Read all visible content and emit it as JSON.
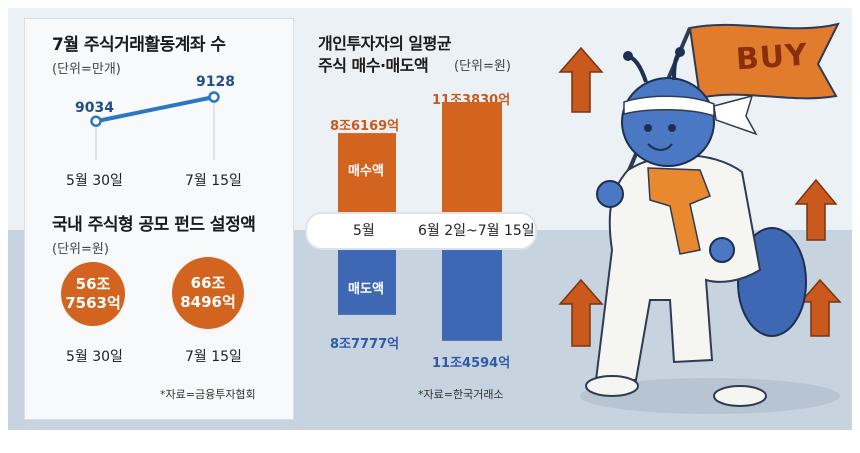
{
  "chart_data": [
    {
      "type": "line",
      "title": "7월 주식거래활동계좌 수",
      "unit": "(단위=만개)",
      "categories": [
        "5월 30일",
        "7월 15일"
      ],
      "values": [
        9034,
        9128
      ]
    },
    {
      "type": "bubble",
      "title": "국내 주식형 공모 펀드 설정액",
      "unit": "(단위=원)",
      "categories": [
        "5월 30일",
        "7월 15일"
      ],
      "values_text": [
        "56조\n7563억",
        "66조\n8496억"
      ],
      "values": [
        567563,
        668496
      ]
    },
    {
      "type": "bar",
      "title": "개인투자자의 일평균",
      "subtitle": "주식 매수·매도액",
      "unit": "(단위=원)",
      "categories": [
        "5월",
        "6월 2일~7월 15일"
      ],
      "series": [
        {
          "name": "매수액",
          "values_text": [
            "8조6169억",
            "11조3830억"
          ],
          "values": [
            86169,
            113830
          ]
        },
        {
          "name": "매도액",
          "values_text": [
            "8조7777억",
            "11조4594억"
          ],
          "values": [
            87777,
            114594
          ]
        }
      ]
    }
  ],
  "sources": {
    "left": "*자료=금융투자협회",
    "middle": "*자료=한국거래소"
  },
  "illustration": {
    "flag_text": "BUY"
  },
  "colors": {
    "orange": "#d2641f",
    "blue": "#3f68b4",
    "line_blue": "#2b77c4",
    "bg_top": "#ecf1f6",
    "bg_bottom": "#c7d3df"
  }
}
